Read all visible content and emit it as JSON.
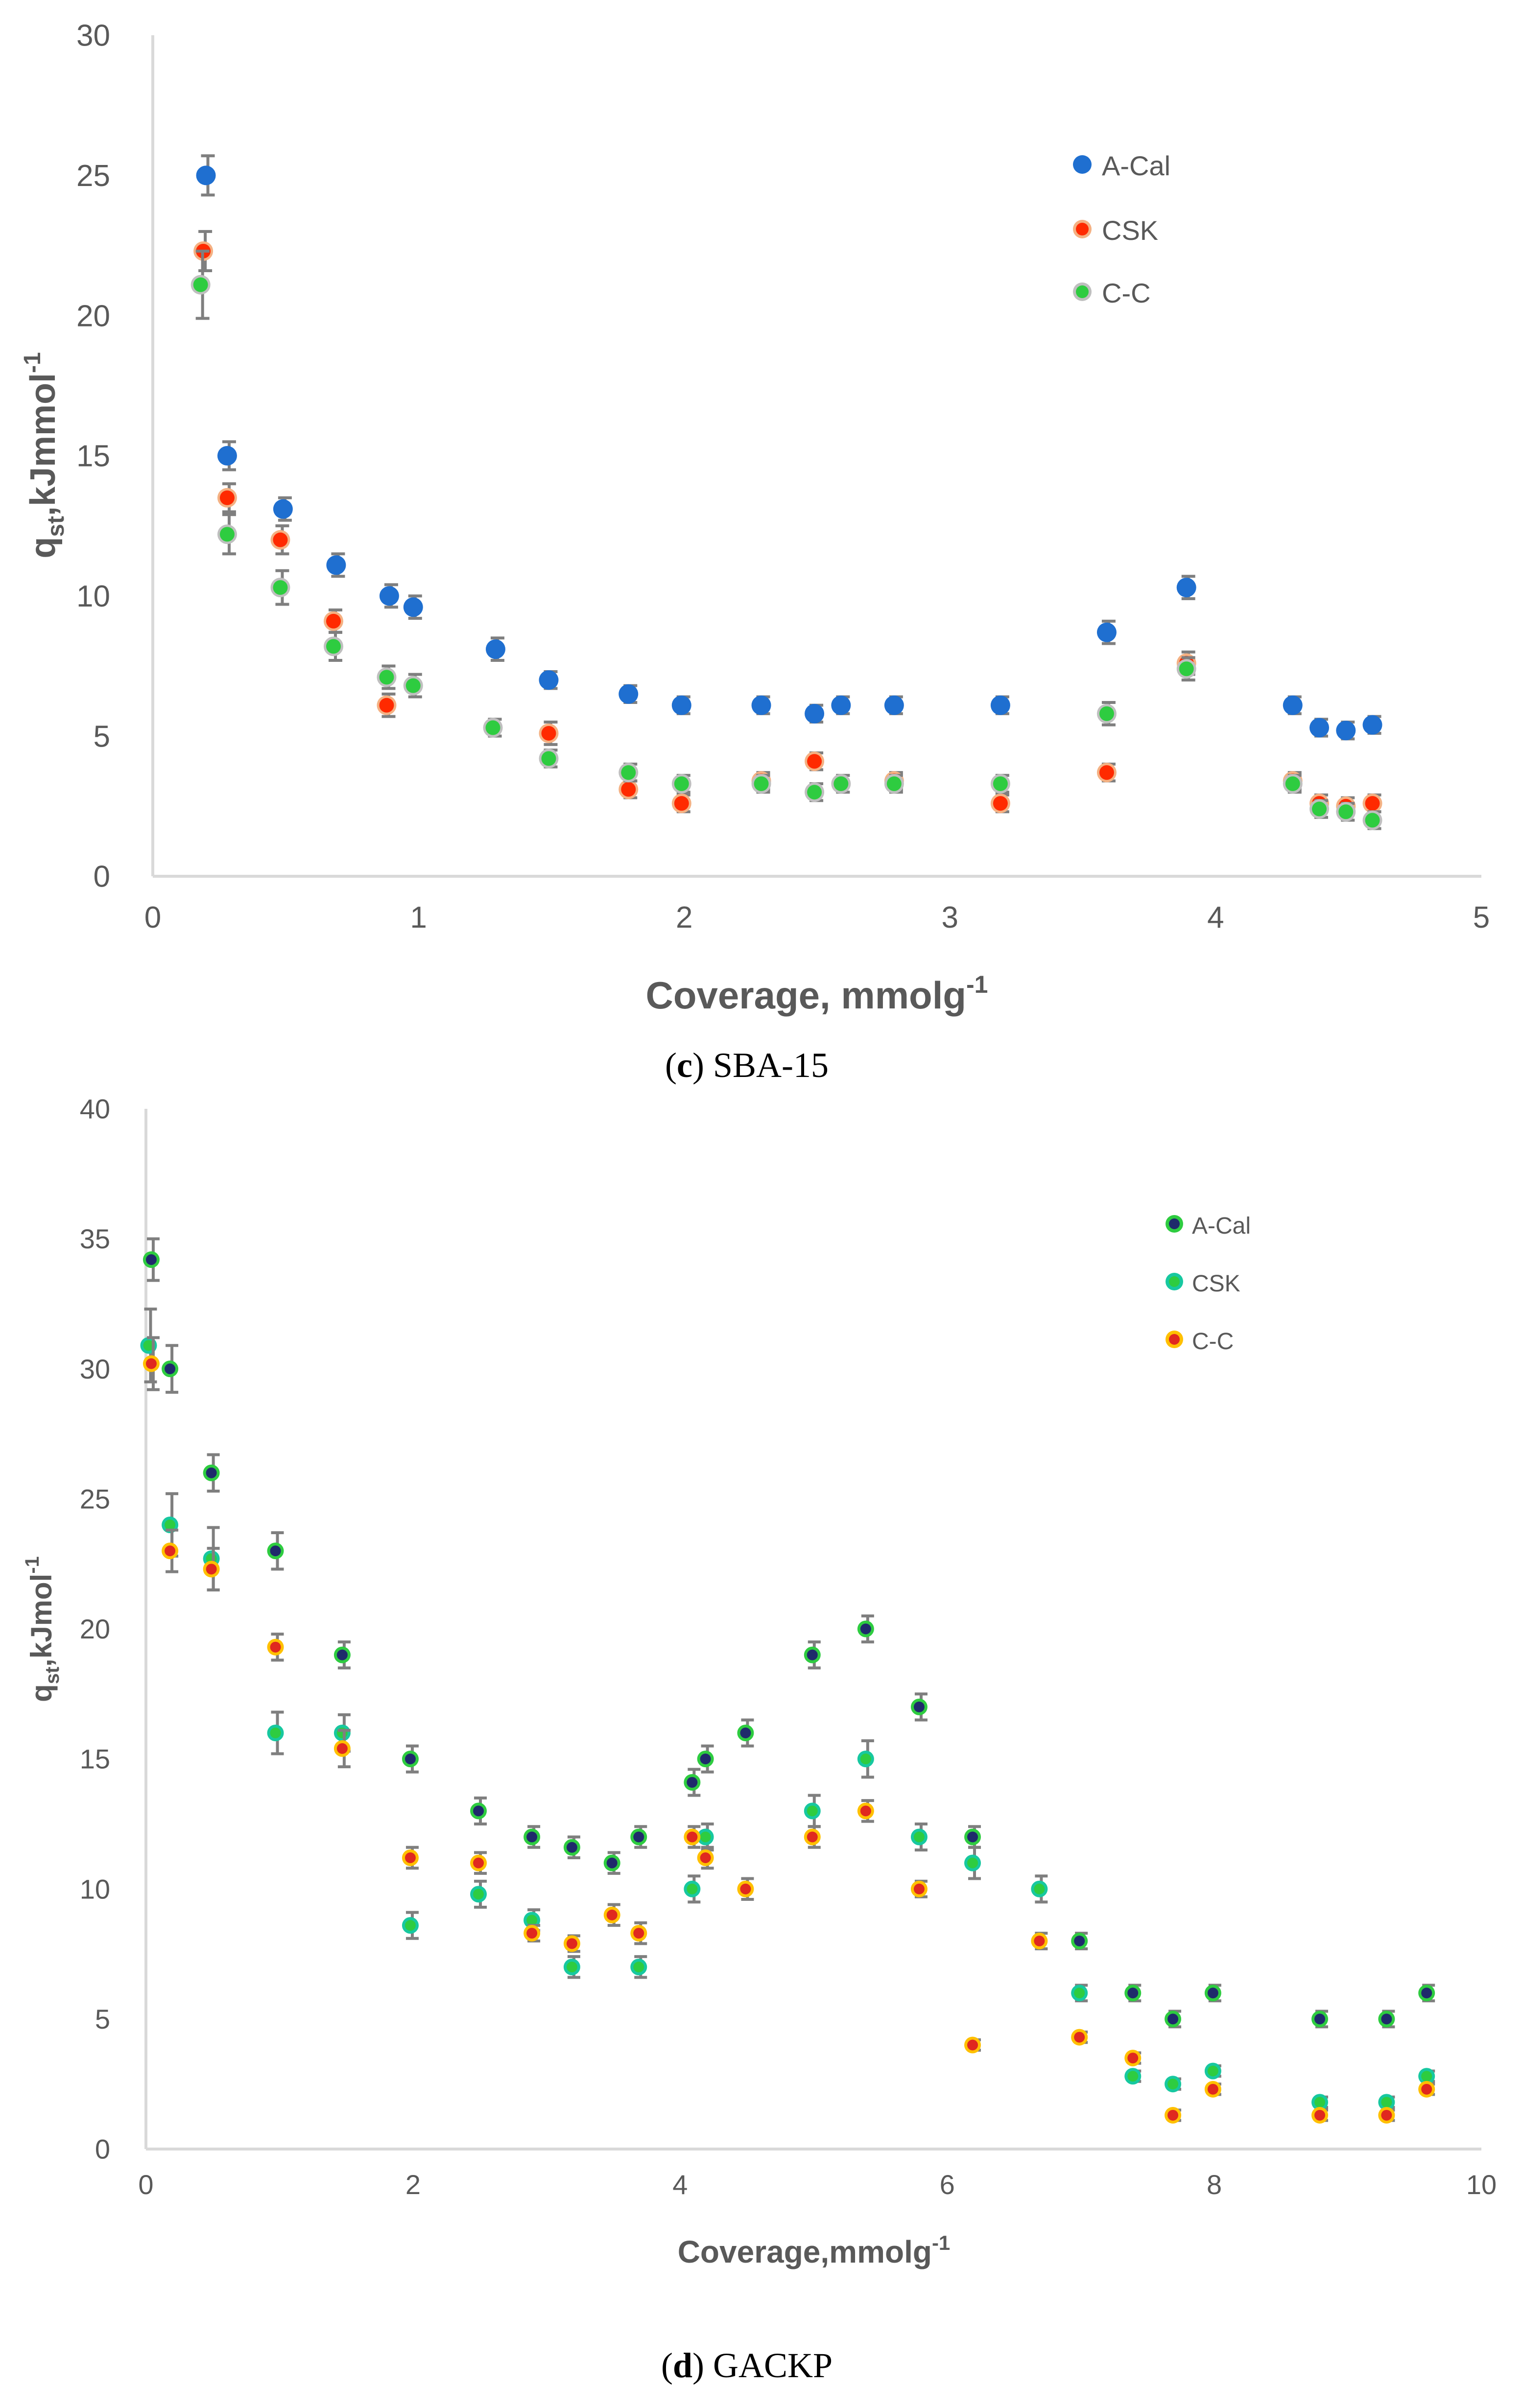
{
  "colors": {
    "axis": "#d9d9d9",
    "text": "#595959",
    "error_bar": "#7f7f7f"
  },
  "chart_data": [
    {
      "type": "scatter",
      "title": "",
      "caption_letter": "c",
      "caption_rest": " SBA-15",
      "xlabel": "Coverage, mmolg",
      "xlabel_sup": "-1",
      "ylabel_main": "q",
      "ylabel_sub": "st",
      "ylabel_rest": ",kJmmol",
      "ylabel_sup": "-1",
      "xlim": [
        0,
        5
      ],
      "ylim": [
        0,
        30
      ],
      "xticks": [
        0,
        1,
        2,
        3,
        4,
        5
      ],
      "yticks": [
        0,
        5,
        10,
        15,
        20,
        25,
        30
      ],
      "xtick_labels": [
        "0",
        "1",
        "2",
        "3",
        "4",
        "5"
      ],
      "ytick_labels": [
        "0",
        "5",
        "10",
        "15",
        "20",
        "25",
        "30"
      ],
      "grid": false,
      "legend": "top-right",
      "series": [
        {
          "name": "A-Cal",
          "color": "#1f6fd0",
          "center": "#1f6fd0",
          "x": [
            0.2,
            0.28,
            0.49,
            0.69,
            0.89,
            0.98,
            1.29,
            1.49,
            1.79,
            1.99,
            2.29,
            2.49,
            2.59,
            2.79,
            3.19,
            3.59,
            3.89,
            4.29,
            4.39,
            4.49,
            4.59
          ],
          "y": [
            25,
            15,
            13.1,
            11.1,
            10,
            9.6,
            8.1,
            7,
            6.5,
            6.1,
            6.1,
            5.8,
            6.1,
            6.1,
            6.1,
            8.7,
            10.3,
            6.1,
            5.3,
            5.2,
            5.4
          ],
          "err": [
            0.7,
            0.5,
            0.4,
            0.4,
            0.4,
            0.4,
            0.4,
            0.3,
            0.3,
            0.3,
            0.3,
            0.3,
            0.3,
            0.3,
            0.3,
            0.4,
            0.4,
            0.3,
            0.3,
            0.3,
            0.3
          ]
        },
        {
          "name": "CSK",
          "color": "#f4b183",
          "center": "#ff2a00",
          "x": [
            0.19,
            0.28,
            0.48,
            0.68,
            0.88,
            1.49,
            1.79,
            1.99,
            2.29,
            2.49,
            2.79,
            3.19,
            3.59,
            3.89,
            4.29,
            4.39,
            4.49,
            4.59
          ],
          "y": [
            22.3,
            13.5,
            12,
            9.1,
            6.1,
            5.1,
            3.1,
            2.6,
            3.4,
            4.1,
            3.4,
            2.6,
            3.7,
            7.6,
            3.4,
            2.6,
            2.5,
            2.6
          ],
          "err": [
            0.7,
            0.5,
            0.5,
            0.4,
            0.4,
            0.4,
            0.3,
            0.3,
            0.3,
            0.3,
            0.3,
            0.3,
            0.3,
            0.4,
            0.3,
            0.3,
            0.3,
            0.3
          ]
        },
        {
          "name": "C-C",
          "color": "#bfbfbf",
          "center": "#2ecc40",
          "x": [
            0.18,
            0.28,
            0.48,
            0.68,
            0.88,
            0.98,
            1.28,
            1.49,
            1.79,
            1.99,
            2.29,
            2.49,
            2.59,
            2.79,
            3.19,
            3.59,
            3.89,
            4.29,
            4.39,
            4.49,
            4.59
          ],
          "y": [
            21.1,
            12.2,
            10.3,
            8.2,
            7.1,
            6.8,
            5.3,
            4.2,
            3.7,
            3.3,
            3.3,
            3,
            3.3,
            3.3,
            3.3,
            5.8,
            7.4,
            3.3,
            2.4,
            2.3,
            2
          ],
          "err": [
            1.2,
            0.7,
            0.6,
            0.5,
            0.4,
            0.4,
            0.3,
            0.3,
            0.3,
            0.3,
            0.3,
            0.3,
            0.3,
            0.3,
            0.3,
            0.4,
            0.4,
            0.3,
            0.3,
            0.3,
            0.3
          ]
        }
      ]
    },
    {
      "type": "scatter",
      "title": "",
      "caption_letter": "d",
      "caption_rest": " GACKP",
      "xlabel": "Coverage,mmolg",
      "xlabel_sup": "-1",
      "ylabel_main": "q",
      "ylabel_sub": "st",
      "ylabel_rest": ",kJmol",
      "ylabel_sup": "-1",
      "xlim": [
        0,
        10
      ],
      "ylim": [
        0,
        40
      ],
      "xticks": [
        0,
        2,
        4,
        6,
        8,
        10
      ],
      "yticks": [
        0,
        5,
        10,
        15,
        20,
        25,
        30,
        35,
        40
      ],
      "xtick_labels": [
        "0",
        "2",
        "4",
        "6",
        "8",
        "10"
      ],
      "ytick_labels": [
        "0",
        "5",
        "10",
        "15",
        "20",
        "25",
        "30",
        "35",
        "40"
      ],
      "grid": false,
      "legend": "top-right",
      "series": [
        {
          "name": "A-Cal",
          "color": "#2ecc40",
          "center": "#1f2a6b",
          "x": [
            0.04,
            0.18,
            0.49,
            0.97,
            1.47,
            1.98,
            2.49,
            2.89,
            3.19,
            3.49,
            3.69,
            4.09,
            4.19,
            4.49,
            4.99,
            5.39,
            5.79,
            6.19,
            6.99,
            7.39,
            7.69,
            7.99,
            8.79,
            9.29,
            9.59
          ],
          "y": [
            34.2,
            30,
            26,
            23,
            19,
            15,
            13,
            12,
            11.6,
            11,
            12,
            14.1,
            15,
            16,
            19,
            20,
            17,
            12,
            8,
            6,
            5,
            6,
            5,
            5,
            6
          ],
          "err": [
            0.8,
            0.9,
            0.7,
            0.7,
            0.5,
            0.5,
            0.5,
            0.4,
            0.4,
            0.4,
            0.4,
            0.5,
            0.5,
            0.5,
            0.5,
            0.5,
            0.5,
            0.4,
            0.3,
            0.3,
            0.3,
            0.3,
            0.3,
            0.3,
            0.3
          ]
        },
        {
          "name": "CSK",
          "color": "#17c8a0",
          "center": "#2ecc40",
          "x": [
            0.02,
            0.18,
            0.49,
            0.97,
            1.47,
            1.98,
            2.49,
            2.89,
            3.19,
            3.69,
            4.09,
            4.19,
            4.99,
            5.39,
            5.79,
            6.19,
            6.69,
            6.99,
            7.39,
            7.69,
            7.99,
            8.79,
            9.29,
            9.59
          ],
          "y": [
            30.9,
            24,
            22.7,
            16,
            16,
            8.6,
            9.8,
            8.8,
            7,
            7,
            10,
            12,
            13,
            15,
            12,
            11,
            10,
            6,
            2.8,
            2.5,
            3,
            1.8,
            1.8,
            2.8
          ],
          "err": [
            1.4,
            1.2,
            1.2,
            0.8,
            0.7,
            0.5,
            0.5,
            0.4,
            0.4,
            0.4,
            0.5,
            0.5,
            0.6,
            0.7,
            0.5,
            0.6,
            0.5,
            0.3,
            0.2,
            0.2,
            0.2,
            0.2,
            0.2,
            0.2
          ]
        },
        {
          "name": "C-C",
          "color": "#ffc000",
          "center": "#e0281f",
          "x": [
            0.04,
            0.18,
            0.49,
            0.97,
            1.47,
            1.98,
            2.49,
            2.89,
            3.19,
            3.49,
            3.69,
            4.09,
            4.19,
            4.49,
            4.99,
            5.39,
            5.79,
            6.19,
            6.69,
            6.99,
            7.39,
            7.69,
            7.99,
            8.79,
            9.29,
            9.59
          ],
          "y": [
            30.2,
            23,
            22.3,
            19.3,
            15.4,
            11.2,
            11,
            8.3,
            7.9,
            9,
            8.3,
            12,
            11.2,
            10,
            12,
            13,
            10,
            4,
            8,
            4.3,
            3.5,
            1.3,
            2.3,
            1.3,
            1.3,
            2.3
          ],
          "err": [
            1.0,
            0.8,
            0.8,
            0.5,
            0.7,
            0.4,
            0.4,
            0.3,
            0.3,
            0.4,
            0.4,
            0.4,
            0.4,
            0.4,
            0.4,
            0.4,
            0.3,
            0.2,
            0.3,
            0.2,
            0.2,
            0.2,
            0.2,
            0.2,
            0.2,
            0.2
          ]
        }
      ]
    }
  ]
}
